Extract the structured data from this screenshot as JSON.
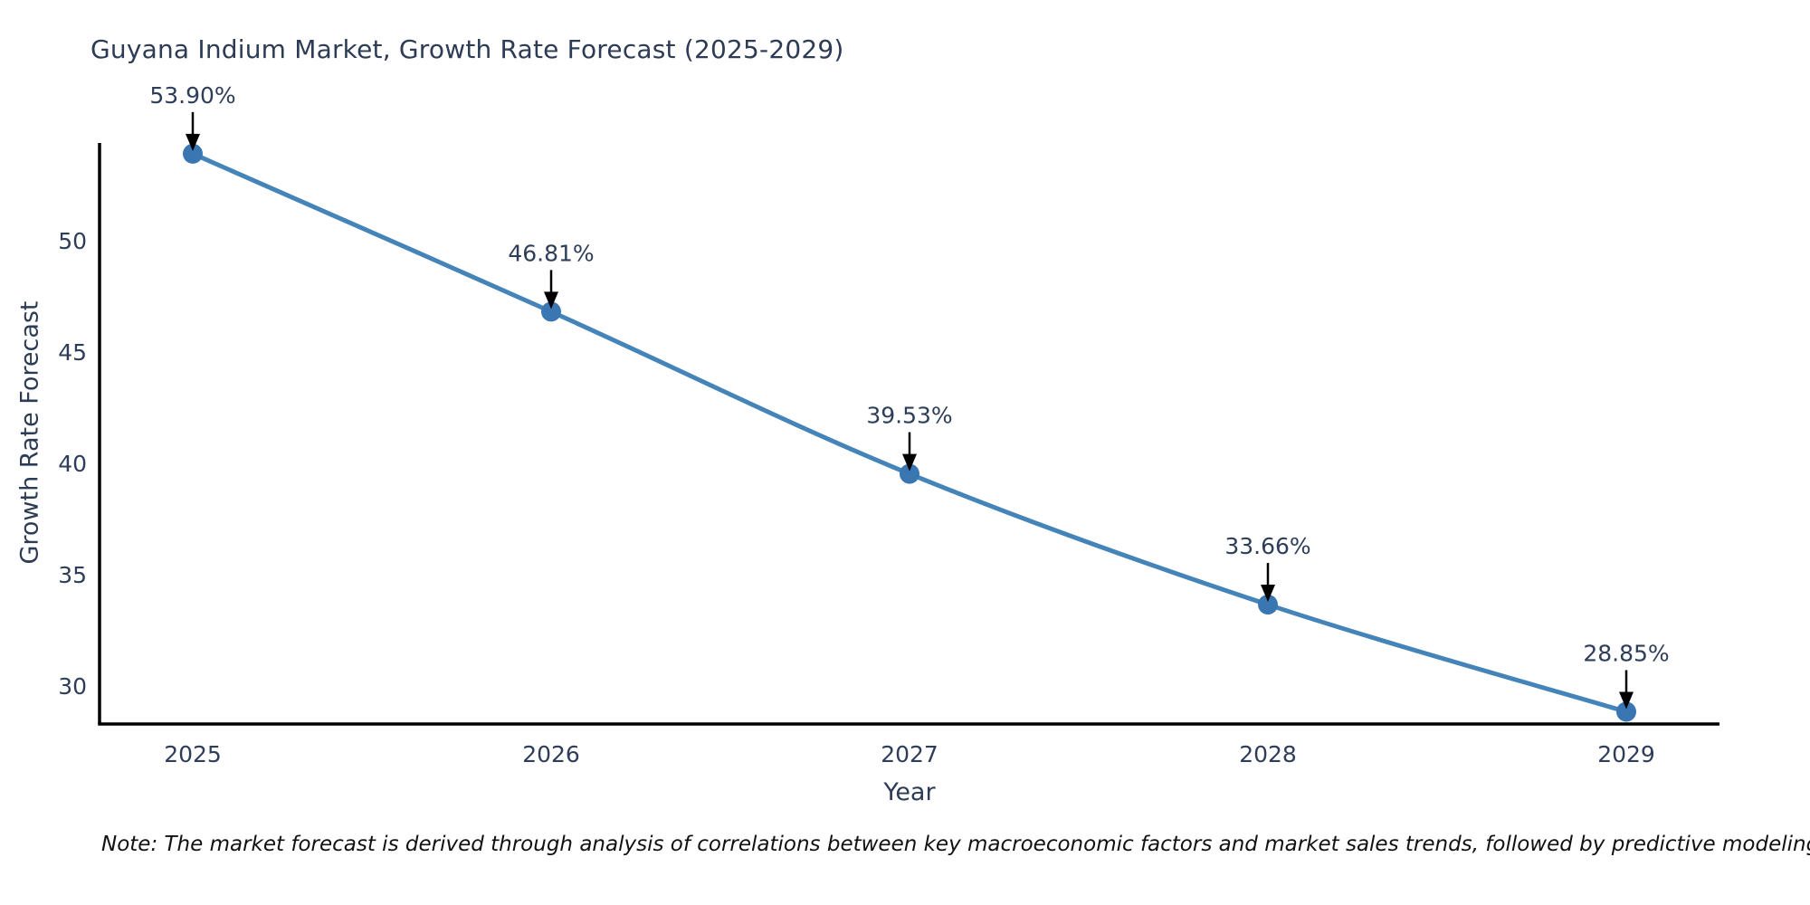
{
  "chart_data": {
    "type": "line",
    "title": "Guyana Indium Market, Growth Rate Forecast (2025-2029)",
    "xlabel": "Year",
    "ylabel": "Growth Rate Forecast",
    "note": "Note: The market forecast is derived through analysis of correlations between key macroeconomic factors and market sales trends, followed by predictive modeling to project future sales",
    "x": [
      2025,
      2026,
      2027,
      2028,
      2029
    ],
    "x_tick_labels": [
      "2025",
      "2026",
      "2027",
      "2028",
      "2029"
    ],
    "values": [
      53.9,
      46.81,
      39.53,
      33.66,
      28.85
    ],
    "point_labels": [
      "53.90%",
      "46.81%",
      "39.53%",
      "33.66%",
      "28.85%"
    ],
    "y_ticks": [
      30,
      35,
      40,
      45,
      50
    ],
    "ylim": [
      28.3,
      54.3
    ],
    "grid": false,
    "legend": "none",
    "marker": "circle",
    "annotation_arrows": true,
    "colors": {
      "line": "#4584b8",
      "marker": "#3976b2",
      "axis": "#000000",
      "tick_text": "#2e3d59",
      "annotation_text": "#2e3d59",
      "arrow": "#000000",
      "title_text": "#2d3b55",
      "background": "#ffffff"
    }
  }
}
